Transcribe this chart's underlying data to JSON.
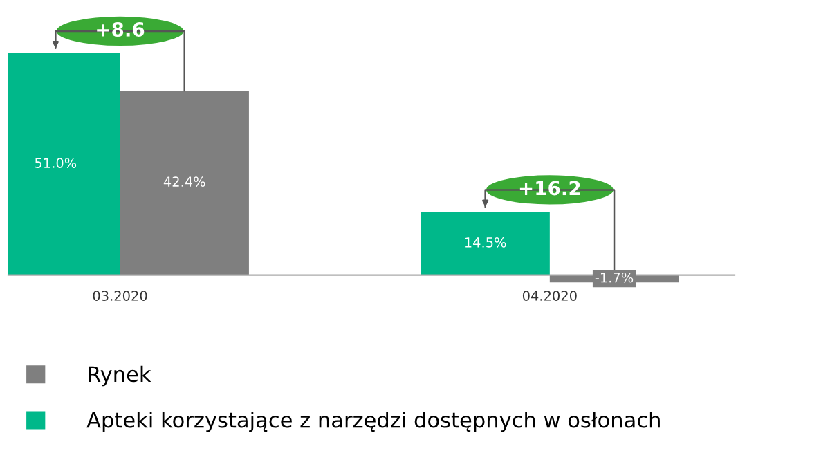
{
  "chart_data": {
    "type": "bar",
    "categories": [
      "03.2020",
      "04.2020"
    ],
    "series": [
      {
        "name": "Apteki korzystające z narzędzi dostępnych w osłonach",
        "color": "#00b88a",
        "values": [
          51.0,
          14.5
        ],
        "value_labels": [
          "51.0%",
          "14.5%"
        ]
      },
      {
        "name": "Rynek",
        "color": "#7f7f7f",
        "values": [
          42.4,
          -1.7
        ],
        "value_labels": [
          "42.4%",
          "-1.7%"
        ]
      }
    ],
    "annotations": [
      "+8.6",
      "+16.2"
    ],
    "legend": "bottom left",
    "grid": false
  }
}
